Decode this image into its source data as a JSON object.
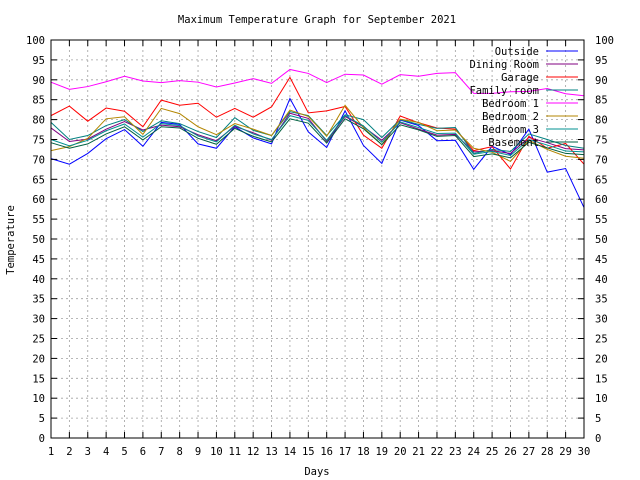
{
  "chart_data": {
    "type": "line",
    "title": "Maximum Temperature Graph for September 2021",
    "xlabel": "Days",
    "ylabel": "Temperature",
    "xlim": [
      1,
      30
    ],
    "ylim": [
      0,
      100
    ],
    "grid": true,
    "legend": "top-right",
    "x": [
      1,
      2,
      3,
      4,
      5,
      6,
      7,
      8,
      9,
      10,
      11,
      12,
      13,
      14,
      15,
      16,
      17,
      18,
      19,
      20,
      21,
      22,
      23,
      24,
      25,
      26,
      27,
      28,
      29,
      30
    ],
    "series": [
      {
        "name": "Outside",
        "color": "#0000ff",
        "values": [
          70.2,
          68.8,
          71.5,
          75.2,
          77.5,
          73.3,
          79.3,
          78.8,
          73.9,
          72.8,
          78.2,
          75.4,
          73.9,
          85.3,
          76.9,
          73.0,
          82.2,
          73.5,
          69.0,
          79.9,
          78.5,
          74.7,
          74.8,
          67.5,
          73.3,
          71.2,
          77.6,
          66.8,
          67.7,
          57.9
        ]
      },
      {
        "name": "Dining Room",
        "color": "#800080",
        "values": [
          77.9,
          74.5,
          75.1,
          77.6,
          79.5,
          77.4,
          78.6,
          78.2,
          76.2,
          74.7,
          78.3,
          76.7,
          74.8,
          81.6,
          80.3,
          74.5,
          80.8,
          78.2,
          74.8,
          79.2,
          77.6,
          76.1,
          76.3,
          71.9,
          72.2,
          71.5,
          75.5,
          74.2,
          72.7,
          72.4
        ]
      },
      {
        "name": "Garage",
        "color": "#ff0000",
        "values": [
          81.0,
          83.4,
          79.6,
          82.9,
          82.1,
          78.2,
          84.9,
          83.6,
          84.1,
          80.6,
          82.8,
          80.6,
          83.2,
          90.6,
          81.7,
          82.2,
          83.3,
          76.1,
          72.8,
          80.9,
          79.2,
          77.9,
          77.6,
          72.2,
          73.2,
          67.6,
          75.8,
          72.8,
          74.0,
          68.8
        ]
      },
      {
        "name": "Family room",
        "color": "#008080",
        "values": [
          79.3,
          75.0,
          76.0,
          78.5,
          80.0,
          77.0,
          79.7,
          79.0,
          77.0,
          75.5,
          80.5,
          77.3,
          76.0,
          82.0,
          81.0,
          76.0,
          81.2,
          80.0,
          75.5,
          80.0,
          78.8,
          77.8,
          78.0,
          71.5,
          72.5,
          72.0,
          76.4,
          75.0,
          73.5,
          72.8
        ]
      },
      {
        "name": "Bedroom 1",
        "color": "#ff00ff",
        "values": [
          89.4,
          87.6,
          88.3,
          89.5,
          90.9,
          89.7,
          89.3,
          89.8,
          89.4,
          88.2,
          89.2,
          90.3,
          89.1,
          92.6,
          91.6,
          89.3,
          91.4,
          91.2,
          88.9,
          91.3,
          90.9,
          91.6,
          91.8,
          86.6,
          86.6,
          87.0,
          87.1,
          87.8,
          86.5,
          86.0
        ]
      },
      {
        "name": "Bedroom 2",
        "color": "#b38600",
        "values": [
          72.2,
          73.2,
          75.3,
          80.2,
          80.7,
          76.3,
          82.8,
          81.5,
          78.2,
          76.2,
          79.0,
          77.6,
          76.0,
          82.4,
          80.8,
          75.8,
          83.6,
          78.0,
          73.7,
          80.1,
          79.3,
          77.2,
          77.4,
          72.8,
          71.8,
          69.5,
          74.8,
          72.5,
          70.8,
          70.3
        ]
      },
      {
        "name": "Bedroom 3",
        "color": "#009090",
        "values": [
          75.0,
          73.4,
          74.8,
          77.2,
          78.9,
          75.6,
          79.0,
          78.5,
          75.9,
          74.4,
          78.6,
          76.4,
          75.0,
          81.0,
          79.8,
          74.8,
          81.0,
          78.4,
          74.3,
          79.4,
          78.0,
          76.5,
          76.6,
          71.3,
          72.0,
          71.0,
          75.0,
          73.6,
          72.1,
          71.9
        ]
      },
      {
        "name": "Basement",
        "color": "#006040",
        "values": [
          74.2,
          72.8,
          73.9,
          76.4,
          78.2,
          74.9,
          78.2,
          77.9,
          75.3,
          73.8,
          77.8,
          75.8,
          74.4,
          80.2,
          79.1,
          74.1,
          80.2,
          77.7,
          73.7,
          78.7,
          77.4,
          75.8,
          76.0,
          70.7,
          71.4,
          70.4,
          74.3,
          72.9,
          71.5,
          71.2
        ]
      }
    ]
  }
}
